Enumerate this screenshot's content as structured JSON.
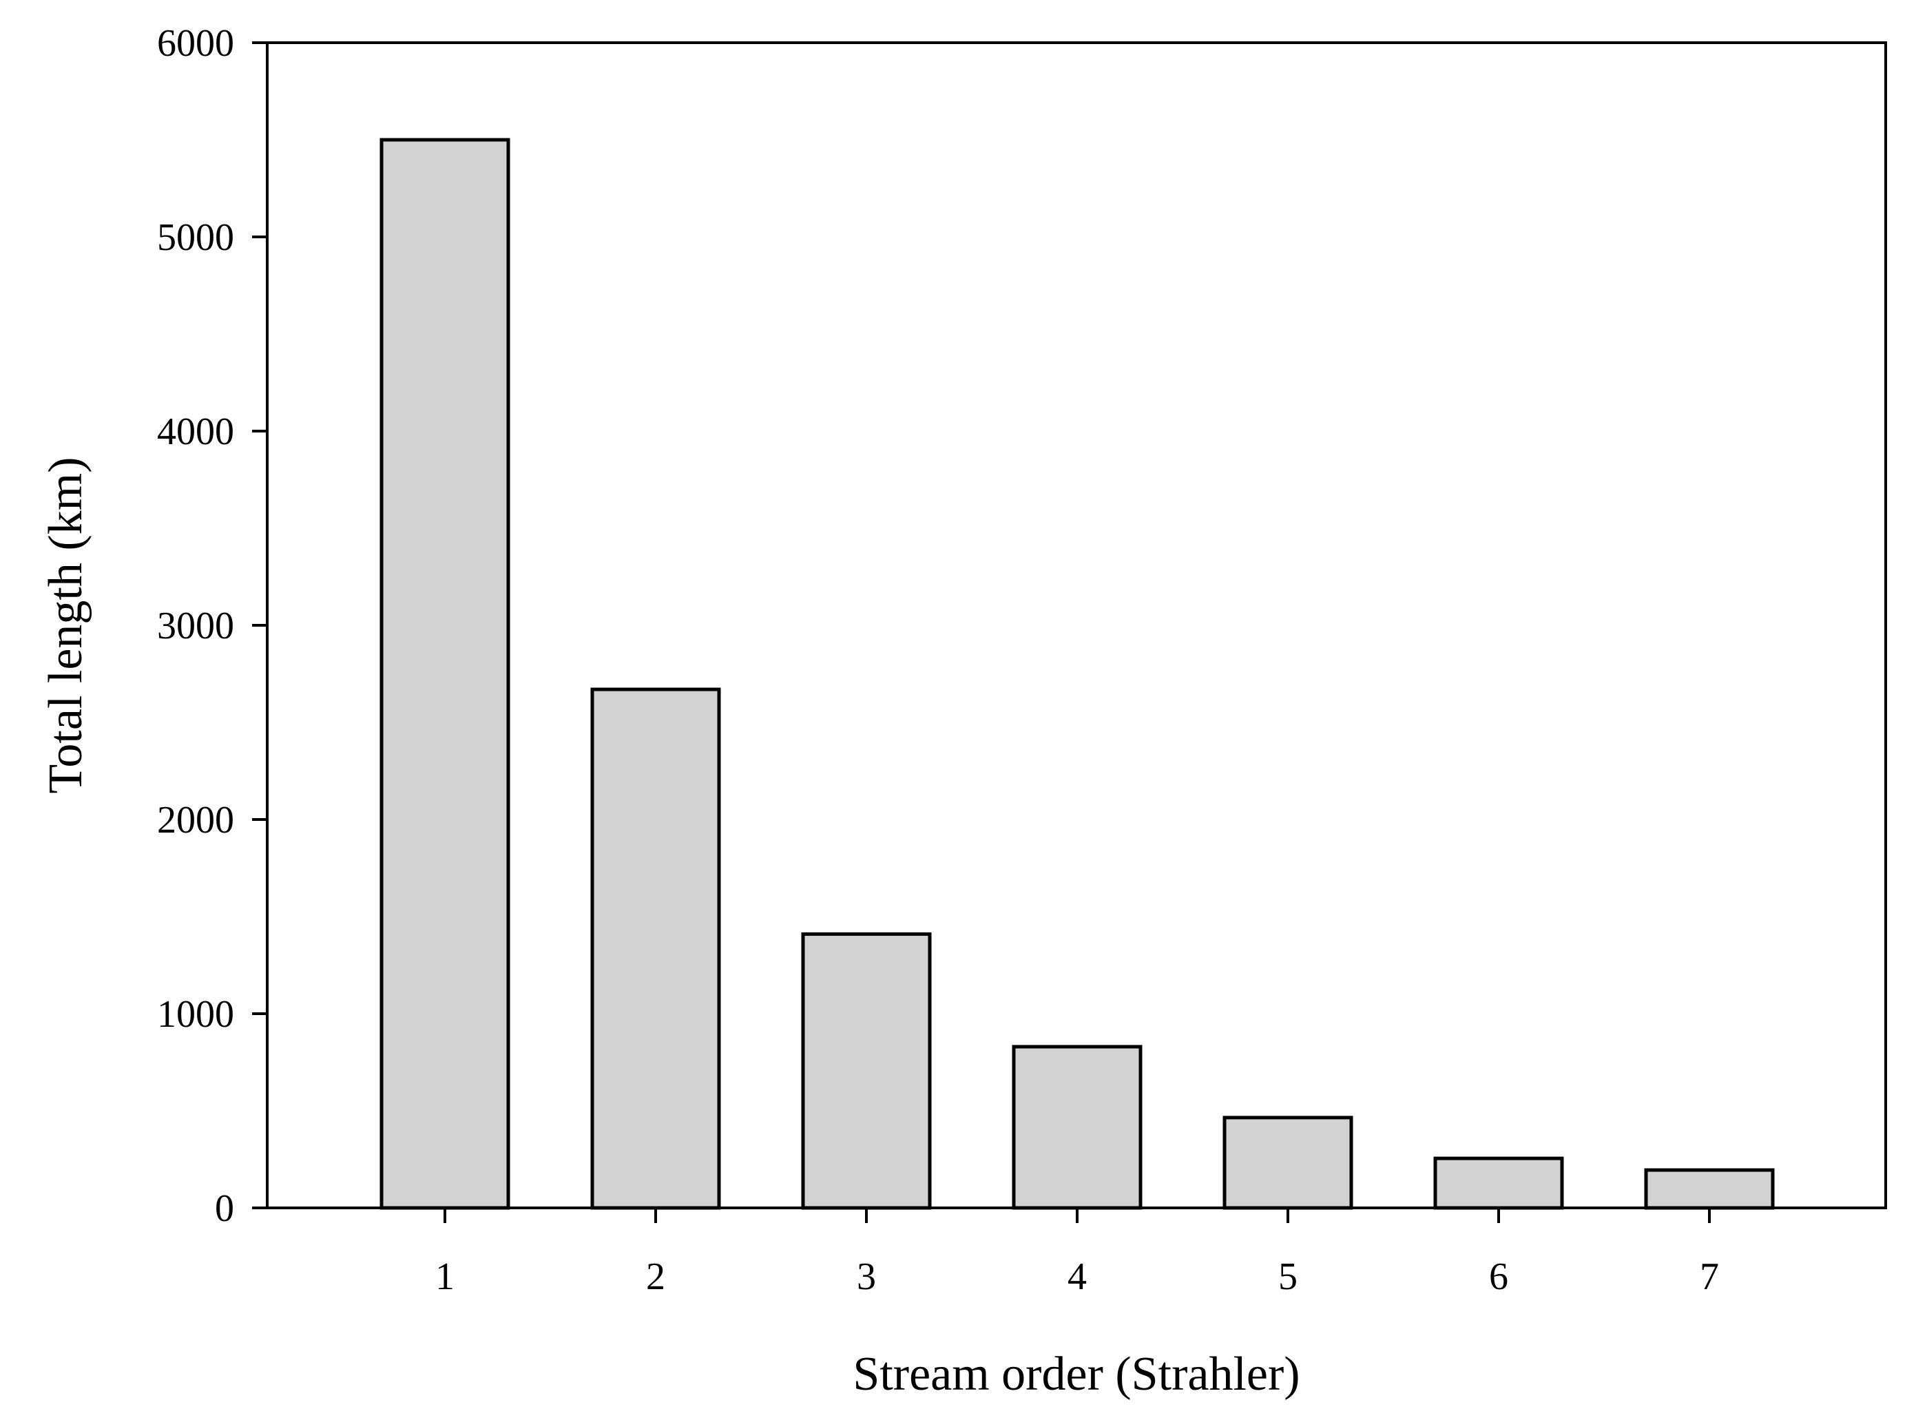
{
  "chart_data": {
    "type": "bar",
    "categories": [
      "1",
      "2",
      "3",
      "4",
      "5",
      "6",
      "7"
    ],
    "values": [
      5500,
      2670,
      1410,
      830,
      465,
      255,
      195
    ],
    "title": "",
    "xlabel": "Stream order (Strahler)",
    "ylabel": "Total length (km)",
    "ylim": [
      0,
      6000
    ],
    "yticks": [
      0,
      1000,
      2000,
      3000,
      4000,
      5000,
      6000
    ],
    "grid": false,
    "legend": "none",
    "colors": {
      "bar_fill": "#d3d3d3",
      "bar_stroke": "#000000",
      "axis": "#000000",
      "background": "#ffffff"
    }
  }
}
